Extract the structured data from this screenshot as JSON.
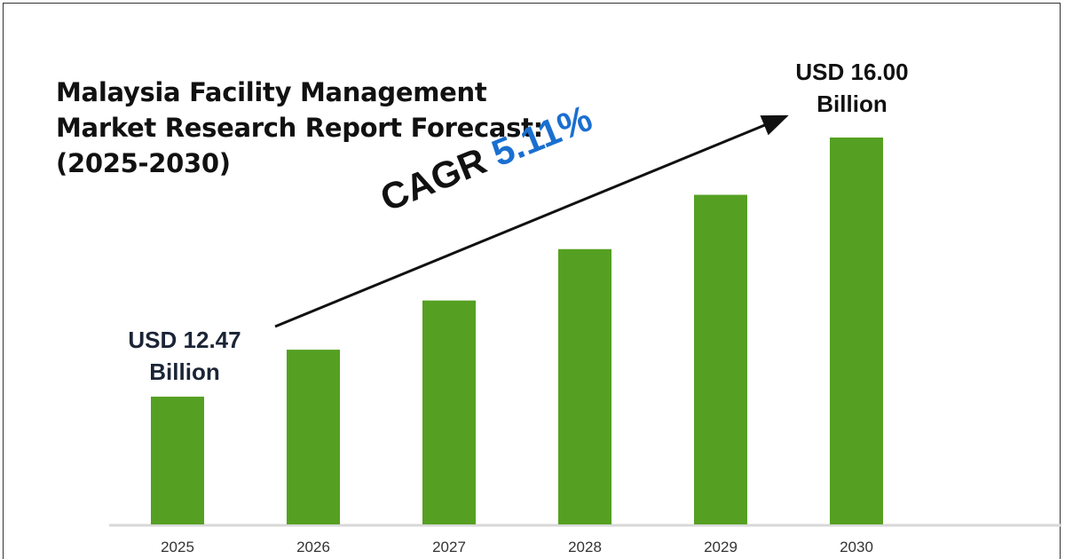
{
  "chart_data": {
    "type": "bar",
    "title": "Malaysia Facility Management Market Research Report Forecast: (2025-2030)",
    "categories": [
      "2025",
      "2026",
      "2027",
      "2028",
      "2029",
      "2030"
    ],
    "values": [
      12.47,
      13.11,
      13.78,
      14.48,
      15.22,
      16.0
    ],
    "ylim": [
      10.73,
      16.0
    ],
    "xlabel": "",
    "ylabel": "",
    "grid": false,
    "bar_color": "#55a022",
    "annotations": {
      "start": {
        "line1": "USD 12.47",
        "line2": "Billion"
      },
      "end": {
        "line1": "USD 16.00",
        "line2": "Billion"
      },
      "cagr_label": "CAGR",
      "cagr_value": "5.11%"
    }
  }
}
